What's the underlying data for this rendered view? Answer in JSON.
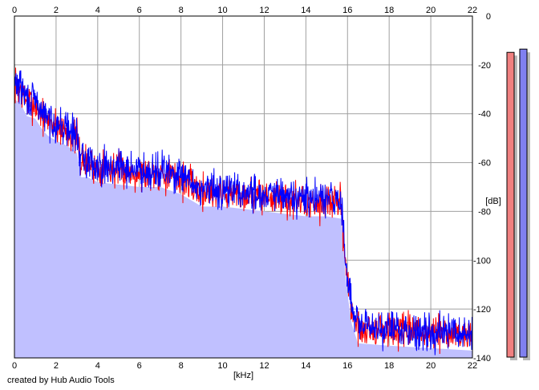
{
  "credit": "created by Hub Audio Tools",
  "chart_data": {
    "type": "line",
    "title": "",
    "xlabel": "[kHz]",
    "ylabel": "[dB]",
    "xlim": [
      0,
      22
    ],
    "ylim": [
      -140,
      0
    ],
    "x_ticks": [
      0,
      2,
      4,
      6,
      8,
      10,
      12,
      14,
      16,
      18,
      20,
      22
    ],
    "y_ticks": [
      0,
      -20,
      -40,
      -60,
      -80,
      -100,
      -120,
      -140
    ],
    "x_tick_labels": [
      "0",
      "2",
      "4",
      "6",
      "8",
      "10",
      "12",
      "14",
      "16",
      "18",
      "20",
      "22"
    ],
    "y_tick_labels": [
      "0",
      "-20",
      "-40",
      "-60",
      "-80",
      "-100",
      "-120",
      "-140"
    ],
    "grid": true,
    "colors": {
      "fill": "#c0c0ff",
      "red_series": "#ff0000",
      "blue_series": "#0000ff",
      "grid": "#a0a0a0",
      "meter_red": "#f08080",
      "meter_blue": "#8080f0"
    },
    "envelope": {
      "x": [
        0,
        0.3,
        0.6,
        1.0,
        1.3,
        1.6,
        2.0,
        2.5,
        3.0,
        3.2,
        3.5,
        4.0,
        5.0,
        6.0,
        7.0,
        8.0,
        9.0,
        10.0,
        11.0,
        12.0,
        13.0,
        14.0,
        15.0,
        15.7,
        15.9,
        16.0,
        16.2,
        16.5,
        18.0,
        20.0,
        22.0
      ],
      "y": [
        -28,
        -30,
        -35,
        -36,
        -40,
        -43,
        -45,
        -47,
        -50,
        -60,
        -60,
        -62,
        -63,
        -64,
        -64,
        -67,
        -72,
        -72,
        -73,
        -74,
        -75,
        -76,
        -76,
        -77,
        -100,
        -108,
        -120,
        -128,
        -129,
        -130,
        -131
      ]
    },
    "series": [
      {
        "noise_amp": 11,
        "offset": 0,
        "seed": 7
      },
      {
        "noise_amp": 11,
        "offset": 1,
        "seed": 29
      }
    ],
    "meters": [
      {
        "level": 0.94
      },
      {
        "level": 0.95
      }
    ]
  }
}
